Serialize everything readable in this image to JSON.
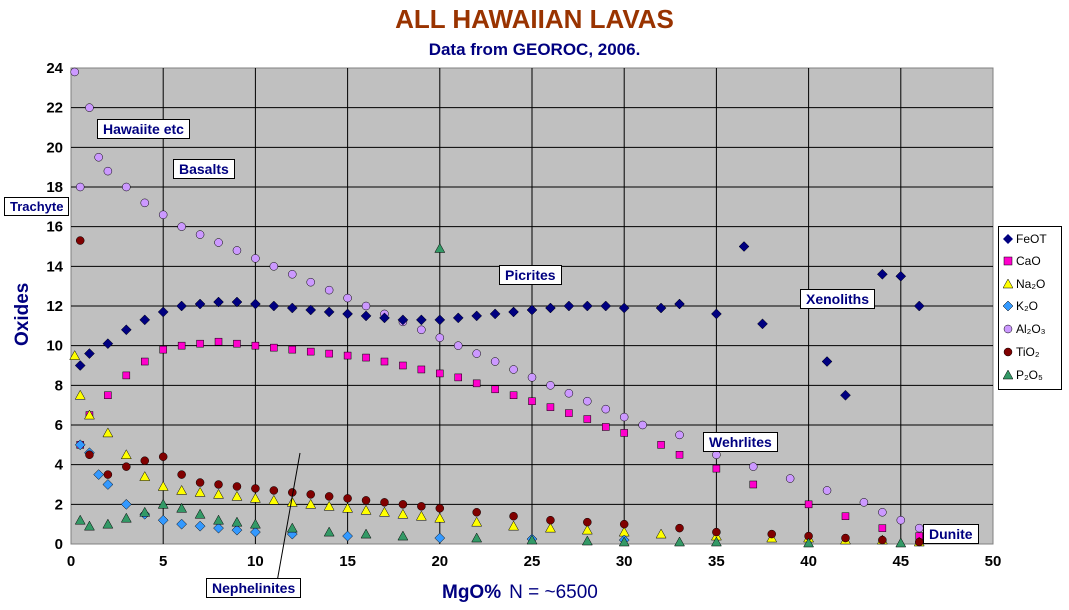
{
  "title": "ALL HAWAIIAN LAVAS",
  "subtitle": "Data from GEOROC, 2006.",
  "xlabel": "MgO%",
  "n_label": "N = ~6500",
  "ylabel": "Oxides",
  "annotations": {
    "hawaiite": "Hawaiite etc",
    "basalts": "Basalts",
    "trachyte": "Trachyte",
    "picrites": "Picrites",
    "xenoliths": "Xenoliths",
    "wehrlites": "Wehrlites",
    "dunite": "Dunite",
    "nephelinites": "Nephelinites"
  },
  "legend": {
    "feot": "FeOT",
    "cao": "CaO",
    "na2o": "Na₂O",
    "k2o": "K₂O",
    "al2o3": "Al₂O₃",
    "tio2": "TiO₂",
    "p2o5": "P₂O₅"
  },
  "chart_data": {
    "type": "scatter",
    "title": "ALL HAWAIIAN LAVAS",
    "subtitle": "Data from GEOROC, 2006.",
    "xlabel": "MgO%",
    "ylabel": "Oxides",
    "xlim": [
      0,
      50
    ],
    "ylim": [
      0,
      24
    ],
    "xticks": [
      0,
      5,
      10,
      15,
      20,
      25,
      30,
      35,
      40,
      45,
      50
    ],
    "yticks": [
      0,
      2,
      4,
      6,
      8,
      10,
      12,
      14,
      16,
      18,
      20,
      22,
      24
    ],
    "grid": true,
    "legend_position": "right",
    "series": [
      {
        "name": "FeOT",
        "marker": "diamond",
        "color": "#000080",
        "x": [
          0.5,
          1,
          2,
          3,
          4,
          5,
          6,
          7,
          8,
          9,
          10,
          11,
          12,
          13,
          14,
          15,
          16,
          17,
          18,
          19,
          20,
          21,
          22,
          23,
          24,
          25,
          26,
          27,
          28,
          29,
          30,
          32,
          33,
          35,
          36.5,
          37.5,
          41,
          42,
          44,
          45,
          46
        ],
        "y": [
          9,
          9.6,
          10.1,
          10.8,
          11.3,
          11.7,
          12,
          12.1,
          12.2,
          12.2,
          12.1,
          12,
          11.9,
          11.8,
          11.7,
          11.6,
          11.5,
          11.4,
          11.3,
          11.3,
          11.3,
          11.4,
          11.5,
          11.6,
          11.7,
          11.8,
          11.9,
          12,
          12,
          12,
          11.9,
          11.9,
          12.1,
          11.6,
          15,
          11.1,
          9.2,
          7.5,
          13.6,
          13.5,
          12
        ]
      },
      {
        "name": "CaO",
        "marker": "square",
        "color": "#ff00cc",
        "x": [
          0.5,
          1,
          2,
          3,
          4,
          5,
          6,
          7,
          8,
          9,
          10,
          11,
          12,
          13,
          14,
          15,
          16,
          17,
          18,
          19,
          20,
          21,
          22,
          23,
          24,
          25,
          26,
          27,
          28,
          29,
          30,
          32,
          33,
          35,
          37,
          40,
          42,
          44,
          46
        ],
        "y": [
          5,
          6.5,
          7.5,
          8.5,
          9.2,
          9.8,
          10,
          10.1,
          10.2,
          10.1,
          10,
          9.9,
          9.8,
          9.7,
          9.6,
          9.5,
          9.4,
          9.2,
          9,
          8.8,
          8.6,
          8.4,
          8.1,
          7.8,
          7.5,
          7.2,
          6.9,
          6.6,
          6.3,
          5.9,
          5.6,
          5,
          4.5,
          3.8,
          3,
          2,
          1.4,
          0.8,
          0.4
        ]
      },
      {
        "name": "Na2O",
        "marker": "triangle",
        "color": "#ffff00",
        "x": [
          0.2,
          0.5,
          1,
          2,
          3,
          4,
          5,
          6,
          7,
          8,
          9,
          10,
          11,
          12,
          13,
          14,
          15,
          16,
          17,
          18,
          19,
          20,
          22,
          24,
          26,
          28,
          30,
          32,
          35,
          38,
          40,
          42,
          44,
          46
        ],
        "y": [
          9.5,
          7.5,
          6.5,
          5.6,
          4.5,
          3.4,
          2.9,
          2.7,
          2.6,
          2.5,
          2.4,
          2.3,
          2.2,
          2.1,
          2,
          1.9,
          1.8,
          1.7,
          1.6,
          1.5,
          1.4,
          1.3,
          1.1,
          0.9,
          0.8,
          0.7,
          0.6,
          0.5,
          0.4,
          0.3,
          0.3,
          0.2,
          0.2,
          0.1
        ]
      },
      {
        "name": "K2O",
        "marker": "diamond",
        "color": "#3399ff",
        "x": [
          0.5,
          1,
          1.5,
          2,
          3,
          4,
          5,
          6,
          7,
          8,
          9,
          10,
          12,
          15,
          20,
          25,
          30
        ],
        "y": [
          5,
          4.6,
          3.5,
          3,
          2,
          1.5,
          1.2,
          1,
          0.9,
          0.8,
          0.7,
          0.6,
          0.5,
          0.4,
          0.3,
          0.25,
          0.2
        ]
      },
      {
        "name": "Al2O3",
        "marker": "circle",
        "color": "#cc99ff",
        "x": [
          0.2,
          0.5,
          1,
          1.5,
          2,
          3,
          4,
          5,
          6,
          7,
          8,
          9,
          10,
          11,
          12,
          13,
          14,
          15,
          16,
          17,
          18,
          19,
          20,
          21,
          22,
          23,
          24,
          25,
          26,
          27,
          28,
          29,
          30,
          31,
          33,
          35,
          37,
          39,
          41,
          43,
          44,
          45,
          46
        ],
        "y": [
          23.8,
          18,
          22,
          19.5,
          18.8,
          18,
          17.2,
          16.6,
          16,
          15.6,
          15.2,
          14.8,
          14.4,
          14,
          13.6,
          13.2,
          12.8,
          12.4,
          12,
          11.6,
          11.2,
          10.8,
          10.4,
          10,
          9.6,
          9.2,
          8.8,
          8.4,
          8,
          7.6,
          7.2,
          6.8,
          6.4,
          6,
          5.5,
          4.5,
          3.9,
          3.3,
          2.7,
          2.1,
          1.6,
          1.2,
          0.8
        ]
      },
      {
        "name": "TiO2",
        "marker": "circle",
        "color": "#800000",
        "x": [
          0.5,
          1,
          2,
          3,
          4,
          5,
          6,
          7,
          8,
          9,
          10,
          11,
          12,
          13,
          14,
          15,
          16,
          17,
          18,
          19,
          20,
          22,
          24,
          26,
          28,
          30,
          33,
          35,
          38,
          40,
          42,
          44,
          46
        ],
        "y": [
          15.3,
          4.5,
          3.5,
          3.9,
          4.2,
          4.4,
          3.5,
          3.1,
          3,
          2.9,
          2.8,
          2.7,
          2.6,
          2.5,
          2.4,
          2.3,
          2.2,
          2.1,
          2,
          1.9,
          1.8,
          1.6,
          1.4,
          1.2,
          1.1,
          1,
          0.8,
          0.6,
          0.5,
          0.4,
          0.3,
          0.2,
          0.1
        ]
      },
      {
        "name": "P2O5",
        "marker": "triangle",
        "color": "#339966",
        "x": [
          0.5,
          1,
          2,
          3,
          4,
          5,
          6,
          7,
          8,
          9,
          10,
          12,
          14,
          16,
          18,
          20,
          22,
          25,
          28,
          30,
          33,
          35,
          40,
          45
        ],
        "y": [
          1.2,
          0.9,
          1,
          1.3,
          1.6,
          2,
          1.8,
          1.5,
          1.2,
          1.1,
          1,
          0.8,
          0.6,
          0.5,
          0.4,
          14.9,
          0.3,
          0.2,
          0.15,
          0.1,
          0.1,
          0.1,
          0.05,
          0.05
        ]
      }
    ]
  }
}
